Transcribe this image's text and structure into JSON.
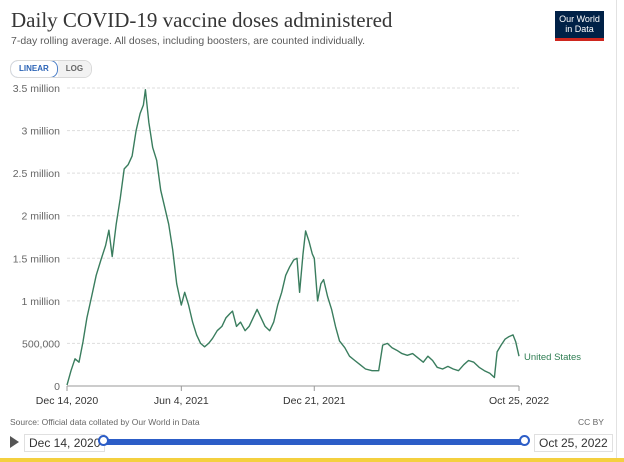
{
  "header": {
    "title": "Daily COVID-19 vaccine doses administered",
    "subtitle": "7-day rolling average. All doses, including boosters, are counted individually.",
    "logo_line1": "Our World",
    "logo_line2": "in Data"
  },
  "controls": {
    "linear_label": "LINEAR",
    "log_label": "LOG"
  },
  "footer": {
    "source": "Source: Official data collated by Our World in Data",
    "license": "CC BY"
  },
  "timeline": {
    "start_label": "Dec 14, 2020",
    "end_label": "Oct 25, 2022"
  },
  "colors": {
    "series": "#3a7d5e",
    "accent": "#2c5dc7",
    "logo_bg": "#002147",
    "logo_bar": "#ce261e"
  },
  "chart_data": {
    "type": "line",
    "title": "Daily COVID-19 vaccine doses administered",
    "xlabel": "",
    "ylabel": "",
    "ylim": [
      0,
      3500000
    ],
    "y_ticks": [
      {
        "v": 0,
        "label": "0"
      },
      {
        "v": 500000,
        "label": "500,000"
      },
      {
        "v": 1000000,
        "label": "1 million"
      },
      {
        "v": 1500000,
        "label": "1.5 million"
      },
      {
        "v": 2000000,
        "label": "2 million"
      },
      {
        "v": 2500000,
        "label": "2.5 million"
      },
      {
        "v": 3000000,
        "label": "3 million"
      },
      {
        "v": 3500000,
        "label": "3.5 million"
      }
    ],
    "x_range": [
      "2020-12-14",
      "2022-10-25"
    ],
    "x_ticks": [
      {
        "date": "2020-12-14",
        "label": "Dec 14, 2020"
      },
      {
        "date": "2021-06-04",
        "label": "Jun 4, 2021"
      },
      {
        "date": "2021-12-21",
        "label": "Dec 21, 2021"
      },
      {
        "date": "2022-10-25",
        "label": "Oct 25, 2022"
      }
    ],
    "grid": true,
    "series": [
      {
        "name": "United States",
        "points": [
          [
            "2020-12-14",
            10000
          ],
          [
            "2020-12-20",
            180000
          ],
          [
            "2020-12-26",
            320000
          ],
          [
            "2021-01-01",
            280000
          ],
          [
            "2021-01-07",
            520000
          ],
          [
            "2021-01-13",
            800000
          ],
          [
            "2021-01-20",
            1050000
          ],
          [
            "2021-01-27",
            1300000
          ],
          [
            "2021-02-03",
            1480000
          ],
          [
            "2021-02-10",
            1650000
          ],
          [
            "2021-02-15",
            1830000
          ],
          [
            "2021-02-20",
            1520000
          ],
          [
            "2021-02-26",
            1900000
          ],
          [
            "2021-03-04",
            2200000
          ],
          [
            "2021-03-10",
            2550000
          ],
          [
            "2021-03-16",
            2600000
          ],
          [
            "2021-03-22",
            2700000
          ],
          [
            "2021-03-28",
            3000000
          ],
          [
            "2021-04-03",
            3200000
          ],
          [
            "2021-04-08",
            3300000
          ],
          [
            "2021-04-11",
            3480000
          ],
          [
            "2021-04-16",
            3100000
          ],
          [
            "2021-04-22",
            2800000
          ],
          [
            "2021-04-28",
            2650000
          ],
          [
            "2021-05-04",
            2300000
          ],
          [
            "2021-05-10",
            2100000
          ],
          [
            "2021-05-16",
            1900000
          ],
          [
            "2021-05-22",
            1600000
          ],
          [
            "2021-05-28",
            1200000
          ],
          [
            "2021-06-04",
            950000
          ],
          [
            "2021-06-09",
            1100000
          ],
          [
            "2021-06-15",
            950000
          ],
          [
            "2021-06-21",
            750000
          ],
          [
            "2021-06-27",
            600000
          ],
          [
            "2021-07-03",
            500000
          ],
          [
            "2021-07-09",
            460000
          ],
          [
            "2021-07-15",
            500000
          ],
          [
            "2021-07-21",
            560000
          ],
          [
            "2021-07-28",
            650000
          ],
          [
            "2021-08-04",
            700000
          ],
          [
            "2021-08-10",
            800000
          ],
          [
            "2021-08-16",
            850000
          ],
          [
            "2021-08-20",
            880000
          ],
          [
            "2021-08-26",
            700000
          ],
          [
            "2021-09-01",
            750000
          ],
          [
            "2021-09-08",
            650000
          ],
          [
            "2021-09-14",
            700000
          ],
          [
            "2021-09-20",
            800000
          ],
          [
            "2021-09-26",
            900000
          ],
          [
            "2021-10-02",
            800000
          ],
          [
            "2021-10-08",
            700000
          ],
          [
            "2021-10-15",
            650000
          ],
          [
            "2021-10-21",
            750000
          ],
          [
            "2021-10-27",
            950000
          ],
          [
            "2021-11-02",
            1100000
          ],
          [
            "2021-11-08",
            1300000
          ],
          [
            "2021-11-14",
            1400000
          ],
          [
            "2021-11-20",
            1480000
          ],
          [
            "2021-11-25",
            1500000
          ],
          [
            "2021-11-29",
            1100000
          ],
          [
            "2021-12-04",
            1550000
          ],
          [
            "2021-12-08",
            1820000
          ],
          [
            "2021-12-13",
            1700000
          ],
          [
            "2021-12-18",
            1550000
          ],
          [
            "2021-12-21",
            1500000
          ],
          [
            "2021-12-26",
            1000000
          ],
          [
            "2021-12-31",
            1200000
          ],
          [
            "2022-01-04",
            1250000
          ],
          [
            "2022-01-10",
            1050000
          ],
          [
            "2022-01-16",
            900000
          ],
          [
            "2022-01-22",
            700000
          ],
          [
            "2022-01-28",
            530000
          ],
          [
            "2022-02-05",
            450000
          ],
          [
            "2022-02-12",
            350000
          ],
          [
            "2022-02-20",
            300000
          ],
          [
            "2022-02-28",
            250000
          ],
          [
            "2022-03-08",
            200000
          ],
          [
            "2022-03-18",
            180000
          ],
          [
            "2022-03-28",
            180000
          ],
          [
            "2022-04-03",
            480000
          ],
          [
            "2022-04-10",
            500000
          ],
          [
            "2022-04-17",
            450000
          ],
          [
            "2022-04-24",
            420000
          ],
          [
            "2022-05-02",
            380000
          ],
          [
            "2022-05-10",
            360000
          ],
          [
            "2022-05-18",
            380000
          ],
          [
            "2022-05-26",
            330000
          ],
          [
            "2022-06-03",
            280000
          ],
          [
            "2022-06-10",
            350000
          ],
          [
            "2022-06-17",
            300000
          ],
          [
            "2022-06-24",
            220000
          ],
          [
            "2022-07-02",
            200000
          ],
          [
            "2022-07-10",
            230000
          ],
          [
            "2022-07-18",
            200000
          ],
          [
            "2022-07-26",
            180000
          ],
          [
            "2022-08-03",
            250000
          ],
          [
            "2022-08-10",
            300000
          ],
          [
            "2022-08-18",
            280000
          ],
          [
            "2022-08-26",
            220000
          ],
          [
            "2022-09-03",
            180000
          ],
          [
            "2022-09-11",
            150000
          ],
          [
            "2022-09-18",
            100000
          ],
          [
            "2022-09-22",
            400000
          ],
          [
            "2022-09-28",
            480000
          ],
          [
            "2022-10-04",
            550000
          ],
          [
            "2022-10-10",
            580000
          ],
          [
            "2022-10-16",
            600000
          ],
          [
            "2022-10-20",
            520000
          ],
          [
            "2022-10-25",
            350000
          ]
        ]
      }
    ]
  }
}
